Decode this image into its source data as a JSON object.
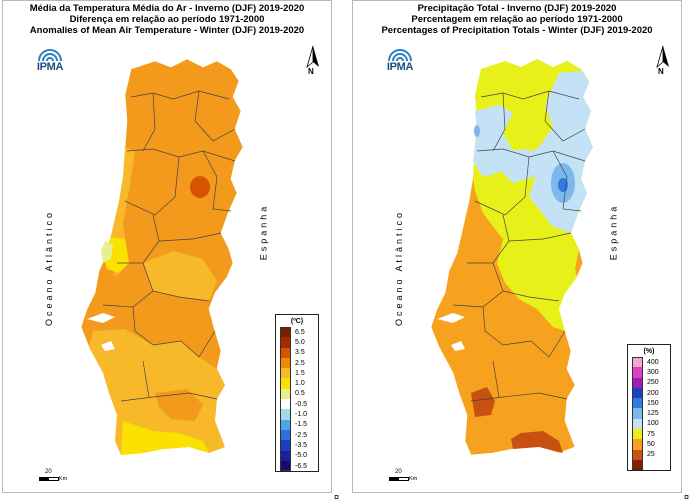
{
  "left_panel": {
    "title_lines": [
      "Média da Temperatura Média do Ar - Inverno (DJF) 2019-2020",
      "Diferença em relação ao período 1971-2000",
      "Anomalies of Mean Air Temperature - Winter (DJF) 2019-2020"
    ],
    "logo_text": "IPMA",
    "north_label": "N",
    "ocean_label": "Oceano Atlântico",
    "country_label": "Espanha",
    "scale_value": "20",
    "scale_unit": "Km",
    "legend": {
      "unit": "(ºC)",
      "items": [
        {
          "label": "6.5",
          "color": "#7a1e00"
        },
        {
          "label": "5.0",
          "color": "#a52a00"
        },
        {
          "label": "3.5",
          "color": "#d45400"
        },
        {
          "label": "2.5",
          "color": "#f08a00"
        },
        {
          "label": "1.5",
          "color": "#f7b82a"
        },
        {
          "label": "1.0",
          "color": "#fbe100"
        },
        {
          "label": "0.5",
          "color": "#e6f08c"
        },
        {
          "label": "-0.5",
          "color": "#ffffff"
        },
        {
          "label": "-1.0",
          "color": "#a8d8f0"
        },
        {
          "label": "-1.5",
          "color": "#4aa8e8"
        },
        {
          "label": "-2.5",
          "color": "#2f6fd8"
        },
        {
          "label": "-3.5",
          "color": "#1c3fc0"
        },
        {
          "label": "-5.0",
          "color": "#1a1fa0"
        },
        {
          "label": "-6.5",
          "color": "#10106a"
        }
      ]
    }
  },
  "right_panel": {
    "title_lines": [
      "Precipitação Total - Inverno (DJF) 2019-2020",
      "Percentagem em relação ao período 1971-2000",
      "Percentages of Precipitation Totals - Winter (DJF) 2019-2020"
    ],
    "logo_text": "IPMA",
    "north_label": "N",
    "ocean_label": "Oceano Atlântico",
    "country_label": "Espanha",
    "scale_value": "20",
    "scale_unit": "Km",
    "legend": {
      "unit": "(%)",
      "items": [
        {
          "label": "400",
          "color": "#f4a6d6"
        },
        {
          "label": "300",
          "color": "#e040c0"
        },
        {
          "label": "250",
          "color": "#9b1fb8"
        },
        {
          "label": "200",
          "color": "#1f3fc0"
        },
        {
          "label": "150",
          "color": "#2f7ae0"
        },
        {
          "label": "125",
          "color": "#7cb8ee"
        },
        {
          "label": "100",
          "color": "#c4e2f6"
        },
        {
          "label": "75",
          "color": "#e8f01a"
        },
        {
          "label": "50",
          "color": "#f7a21e"
        },
        {
          "label": "25",
          "color": "#c85010"
        },
        {
          "label": "",
          "color": "#8a1c00"
        }
      ]
    }
  },
  "page_marks": [
    "¤",
    "¤"
  ]
}
